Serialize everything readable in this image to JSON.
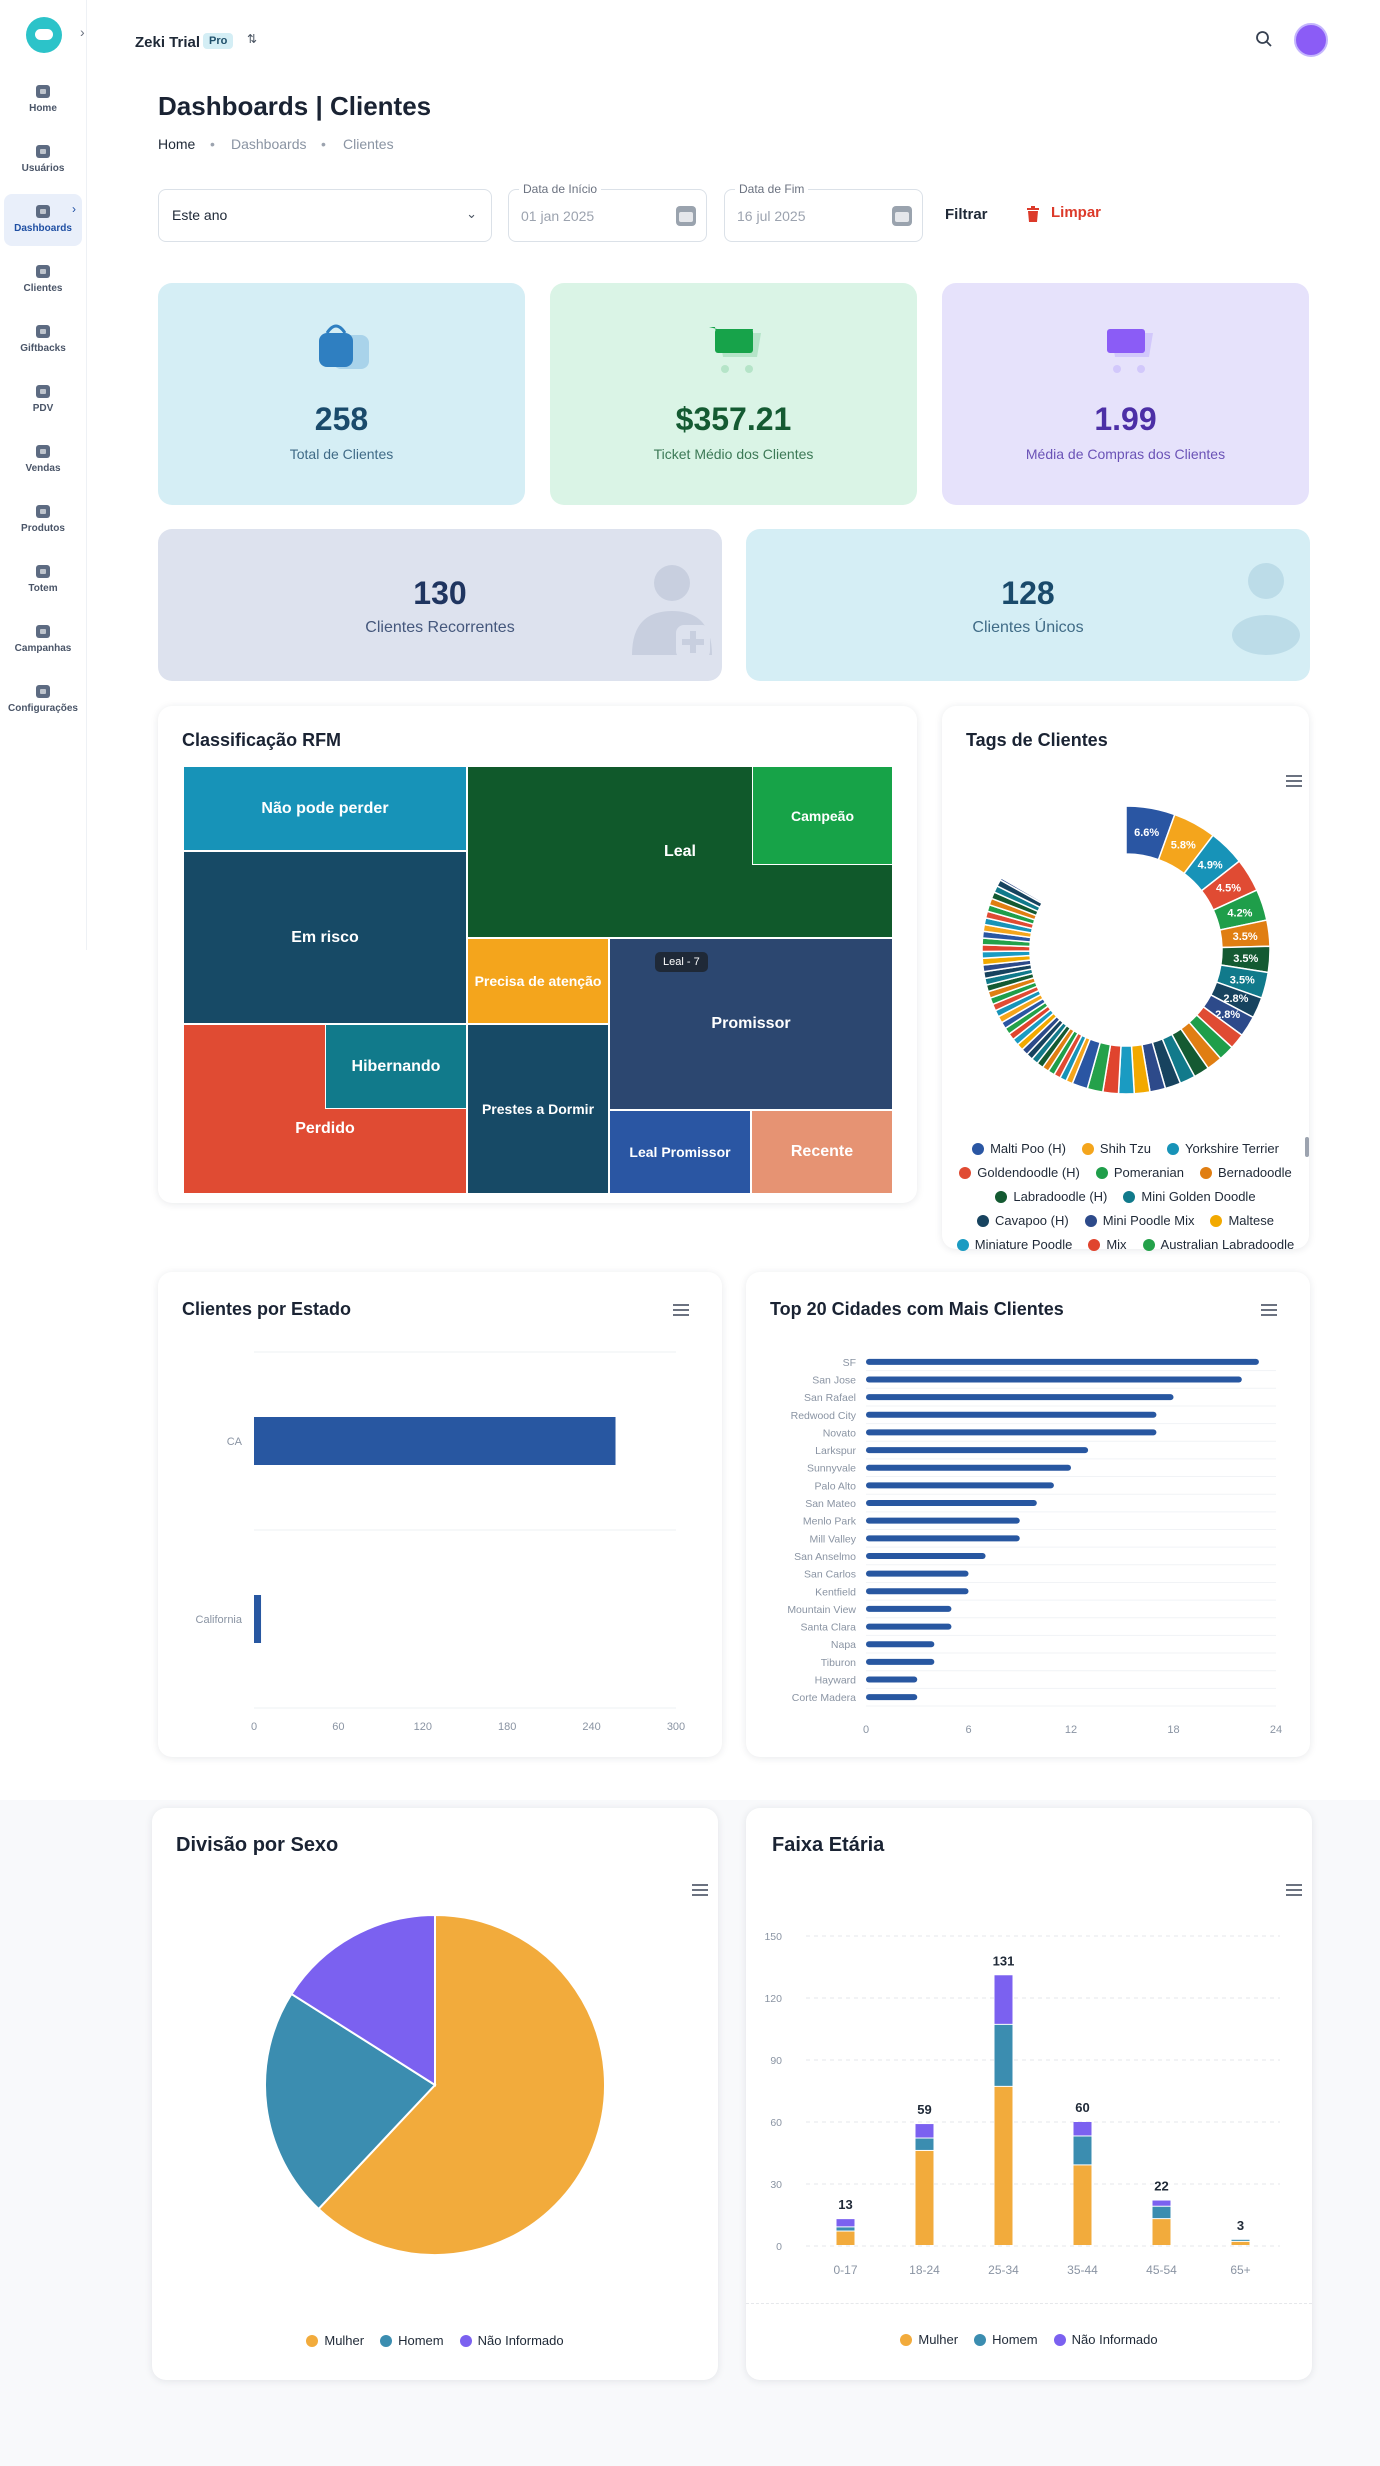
{
  "nav": {
    "items": [
      {
        "label": "Home",
        "icon": "flag-icon"
      },
      {
        "label": "Usuários",
        "icon": "user-icon"
      },
      {
        "label": "Dashboards",
        "icon": "chart-icon",
        "active": true
      },
      {
        "label": "Clientes",
        "icon": "users-icon"
      },
      {
        "label": "Giftbacks",
        "icon": "star-icon"
      },
      {
        "label": "PDV",
        "icon": "document-icon"
      },
      {
        "label": "Vendas",
        "icon": "cart-icon"
      },
      {
        "label": "Produtos",
        "icon": "box-icon"
      },
      {
        "label": "Totem",
        "icon": "totem-icon"
      },
      {
        "label": "Campanhas",
        "icon": "megaphone-icon"
      },
      {
        "label": "Configurações",
        "icon": "gear-icon"
      }
    ]
  },
  "header": {
    "brand": "Zeki Trial",
    "badge": "Pro"
  },
  "page": {
    "title": "Dashboards | Clientes",
    "breadcrumb": [
      "Home",
      "Dashboards",
      "Clientes"
    ]
  },
  "filters": {
    "period": "Este ano",
    "start_label": "Data de Início",
    "start_value": "01 jan 2025",
    "end_label": "Data de Fim",
    "end_value": "16 jul 2025",
    "filter_btn": "Filtrar",
    "clear_btn": "Limpar"
  },
  "stats": [
    {
      "value": "258",
      "label": "Total de Clientes",
      "color": "#1a4a6b",
      "bg": "#d5eef5"
    },
    {
      "value": "$357.21",
      "label": "Ticket Médio dos Clientes",
      "color": "#145a32",
      "bg": "#daf4e6"
    },
    {
      "value": "1.99",
      "label": "Média de Compras dos Clientes",
      "color": "#4c2fa6",
      "bg": "#e6e2fb"
    },
    {
      "value": "130",
      "label": "Clientes Recorrentes",
      "color": "#1f3560",
      "bg": "#dde2ee"
    },
    {
      "value": "128",
      "label": "Clientes Únicos",
      "color": "#1a4a6b",
      "bg": "#d5eef5"
    }
  ],
  "rfm": {
    "title": "Classificação RFM",
    "tooltip": "Leal - 7",
    "segments": [
      "Não pode perder",
      "Em risco",
      "Perdido",
      "Hibernando",
      "Leal",
      "Campeão",
      "Precisa de atenção",
      "Prestes a Dormir",
      "Promissor",
      "Leal Promissor",
      "Recente"
    ]
  },
  "tags": {
    "title": "Tags de Clientes",
    "labels": [
      "6.6%",
      "5.8%",
      "4.9%",
      "4.5%",
      "4.2%",
      "3.5%",
      "3.5%",
      "3.5%",
      "2.8%",
      "2.8%"
    ],
    "legend": [
      {
        "name": "Malti Poo (H)",
        "color": "#2a56a3"
      },
      {
        "name": "Shih Tzu",
        "color": "#f4a51c"
      },
      {
        "name": "Yorkshire Terrier",
        "color": "#1793b8"
      },
      {
        "name": "Goldendoodle (H)",
        "color": "#e04b33"
      },
      {
        "name": "Pomeranian",
        "color": "#1f9e4a"
      },
      {
        "name": "Bernadoodle",
        "color": "#e07e12"
      },
      {
        "name": "Labradoodle (H)",
        "color": "#145a32"
      },
      {
        "name": "Mini Golden Doodle",
        "color": "#117a8b"
      },
      {
        "name": "Cavapoo (H)",
        "color": "#17435f"
      },
      {
        "name": "Mini Poodle Mix",
        "color": "#2d4a8a"
      },
      {
        "name": "Maltese",
        "color": "#f2a900"
      },
      {
        "name": "Miniature Poodle",
        "color": "#1a9bc2"
      },
      {
        "name": "Mix",
        "color": "#e0442e"
      },
      {
        "name": "Australian Labradoodle",
        "color": "#24a14a"
      }
    ]
  },
  "estado": {
    "title": "Clientes por Estado"
  },
  "cidades": {
    "title": "Top 20 Cidades com Mais Clientes"
  },
  "sexo": {
    "title": "Divisão por Sexo",
    "legend": [
      {
        "name": "Mulher",
        "color": "#f2ab3c"
      },
      {
        "name": "Homem",
        "color": "#3b8db0"
      },
      {
        "name": "Não Informado",
        "color": "#7b61f0"
      }
    ]
  },
  "idade": {
    "title": "Faixa Etária",
    "legend": [
      {
        "name": "Mulher",
        "color": "#f2ab3c"
      },
      {
        "name": "Homem",
        "color": "#3b8db0"
      },
      {
        "name": "Não Informado",
        "color": "#7b61f0"
      }
    ]
  },
  "chart_data": [
    {
      "type": "bar",
      "title": "Clientes por Estado",
      "orientation": "horizontal",
      "categories": [
        "CA",
        "California"
      ],
      "values": [
        257,
        5
      ],
      "xlim": [
        0,
        300
      ],
      "xticks": [
        0,
        60,
        120,
        180,
        240,
        300
      ]
    },
    {
      "type": "bar",
      "title": "Top 20 Cidades com Mais Clientes",
      "orientation": "horizontal",
      "categories": [
        "SF",
        "San Jose",
        "San Rafael",
        "Redwood City",
        "Novato",
        "Larkspur",
        "Sunnyvale",
        "Palo Alto",
        "San Mateo",
        "Menlo Park",
        "Mill Valley",
        "San Anselmo",
        "San Carlos",
        "Kentfield",
        "Mountain View",
        "Santa Clara",
        "Napa",
        "Tiburon",
        "Hayward",
        "Corte Madera"
      ],
      "values": [
        23,
        22,
        18,
        17,
        17,
        13,
        12,
        11,
        10,
        9,
        9,
        7,
        6,
        6,
        5,
        5,
        4,
        4,
        3,
        3
      ],
      "xlim": [
        0,
        24
      ],
      "xticks": [
        0,
        6,
        12,
        18,
        24
      ]
    },
    {
      "type": "pie",
      "title": "Divisão por Sexo",
      "labels": [
        "Mulher",
        "Homem",
        "Não Informado"
      ],
      "values": [
        62,
        22,
        16
      ]
    },
    {
      "type": "bar",
      "stacked": true,
      "title": "Faixa Etária",
      "categories": [
        "0-17",
        "18-24",
        "25-34",
        "35-44",
        "45-54",
        "65+"
      ],
      "series": [
        {
          "name": "Mulher",
          "values": [
            7,
            46,
            77,
            39,
            13,
            2
          ]
        },
        {
          "name": "Homem",
          "values": [
            2,
            6,
            30,
            14,
            6,
            1
          ]
        },
        {
          "name": "Não Informado",
          "values": [
            4,
            7,
            24,
            7,
            3,
            0
          ]
        }
      ],
      "totals": [
        "13",
        "59",
        "131",
        "60",
        "22",
        "3"
      ],
      "ylim": [
        0,
        150
      ],
      "yticks": [
        0,
        30,
        60,
        90,
        120,
        150
      ]
    }
  ]
}
